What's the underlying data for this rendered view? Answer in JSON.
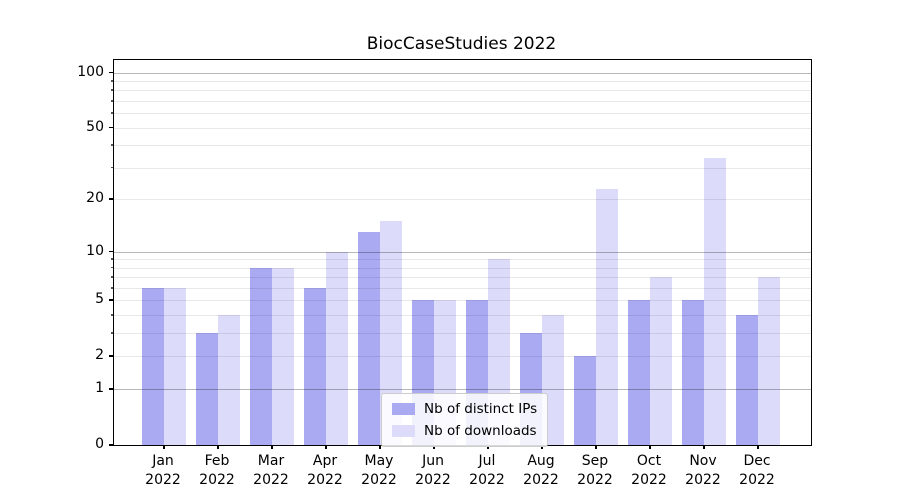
{
  "chart_data": {
    "type": "bar",
    "title": "BiocCaseStudies 2022",
    "categories": [
      "Jan",
      "Feb",
      "Mar",
      "Apr",
      "May",
      "Jun",
      "Jul",
      "Aug",
      "Sep",
      "Oct",
      "Nov",
      "Dec"
    ],
    "x_second_line": "2022",
    "series": [
      {
        "name": "Nb of distinct IPs",
        "color": "#aaaaf2",
        "values": [
          6,
          3,
          8,
          6,
          13,
          5,
          5,
          3,
          2,
          5,
          5,
          4
        ]
      },
      {
        "name": "Nb of downloads",
        "color": "#dcdcfa",
        "values": [
          6,
          4,
          8,
          10,
          15,
          5,
          9,
          4,
          23,
          7,
          34,
          7
        ]
      }
    ],
    "yscale": "log1p",
    "ylim": [
      0,
      114
    ],
    "ytick_values": [
      0,
      1,
      2,
      5,
      10,
      20,
      50,
      100
    ],
    "ytick_labels": [
      "0",
      "1",
      "2",
      "5",
      "10",
      "20",
      "50",
      "100"
    ],
    "minor_grid_values": [
      2,
      3,
      4,
      5,
      6,
      7,
      8,
      9,
      20,
      30,
      40,
      50,
      60,
      70,
      80,
      90
    ],
    "major_grid_values": [
      1,
      10,
      100
    ],
    "grid": true,
    "legend_position": "lower center",
    "legend": [
      "Nb of distinct IPs",
      "Nb of downloads"
    ]
  }
}
